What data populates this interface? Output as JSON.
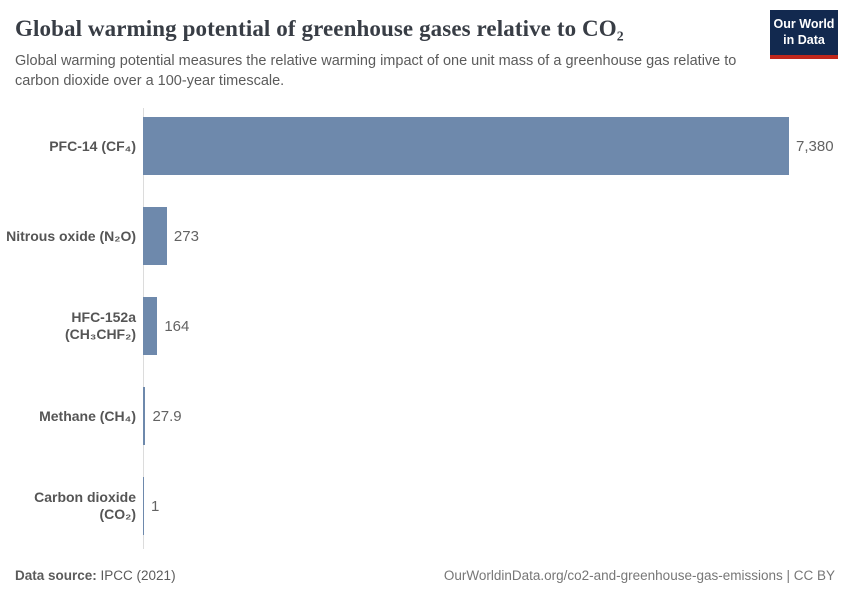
{
  "header": {
    "title": "Global warming potential of greenhouse gases relative to CO₂",
    "subtitle": "Global warming potential measures the relative warming impact of one unit mass of a greenhouse gas relative to carbon dioxide over a 100-year timescale.",
    "logo": {
      "line1": "Our World",
      "line2": "in Data",
      "bg_color": "#12294f",
      "accent_color": "#c0271c"
    }
  },
  "chart_data": {
    "type": "bar",
    "orientation": "horizontal",
    "title": "Global warming potential of greenhouse gases relative to CO₂",
    "subtitle": "Global warming potential measures the relative warming impact of one unit mass of a greenhouse gas relative to carbon dioxide over a 100-year timescale.",
    "categories": [
      "PFC-14 (CF₄)",
      "Nitrous oxide (N₂O)",
      "HFC-152a (CH₃CHF₂)",
      "Methane (CH₄)",
      "Carbon dioxide (CO₂)"
    ],
    "values": [
      7380,
      273,
      164,
      27.9,
      1
    ],
    "value_labels": [
      "7,380",
      "273",
      "164",
      "27.9",
      "1"
    ],
    "xlabel": "",
    "ylabel": "",
    "xlim": [
      0,
      7380
    ],
    "grid": false,
    "legend": false,
    "bar_color": "#6e89ac",
    "axis_line_color": "#dcdcdc"
  },
  "footer": {
    "source_label": "Data source:",
    "source_value": " IPCC (2021)",
    "link_text": "OurWorldinData.org/co2-and-greenhouse-gas-emissions | CC BY"
  }
}
